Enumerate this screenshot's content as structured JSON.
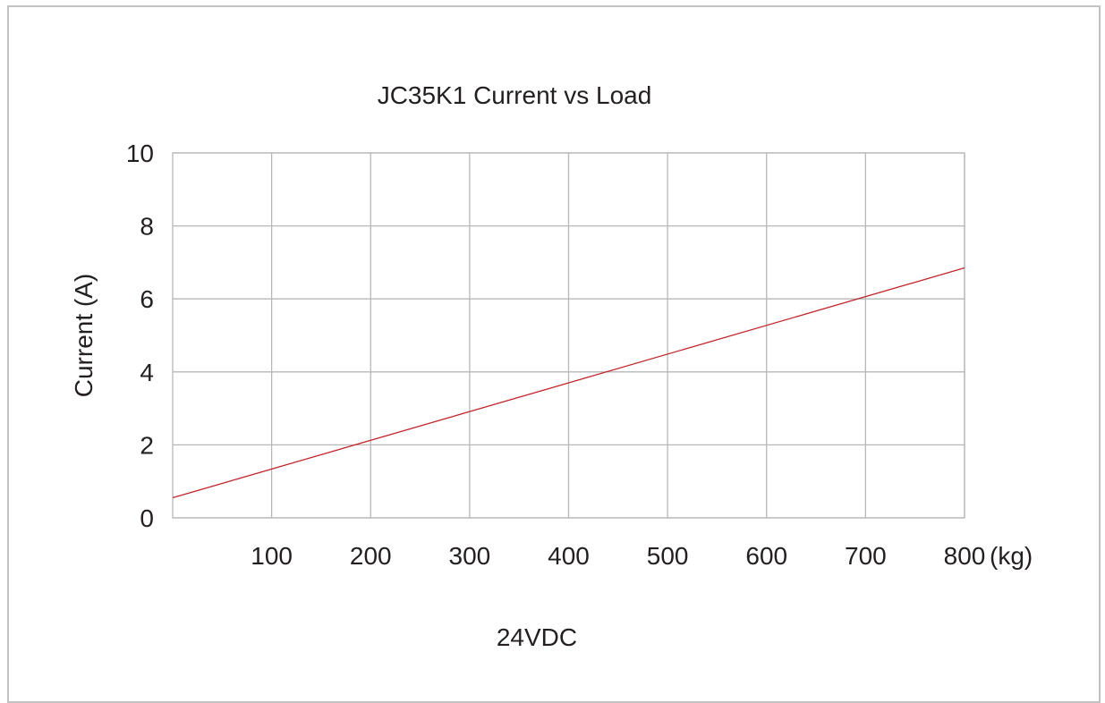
{
  "chart_data": {
    "type": "line",
    "title": "JC35K1 Current vs Load",
    "subtitle": "24VDC",
    "xlabel": "",
    "x_unit": "(kg)",
    "ylabel": "Current (A)",
    "xlim": [
      0,
      800
    ],
    "ylim": [
      0,
      10
    ],
    "x_ticks": [
      100,
      200,
      300,
      400,
      500,
      600,
      700,
      800
    ],
    "y_ticks": [
      0,
      2,
      4,
      6,
      8,
      10
    ],
    "grid": true,
    "series": [
      {
        "color": "#c1272d",
        "x": [
          0,
          800
        ],
        "y": [
          0.55,
          6.85
        ]
      }
    ]
  }
}
